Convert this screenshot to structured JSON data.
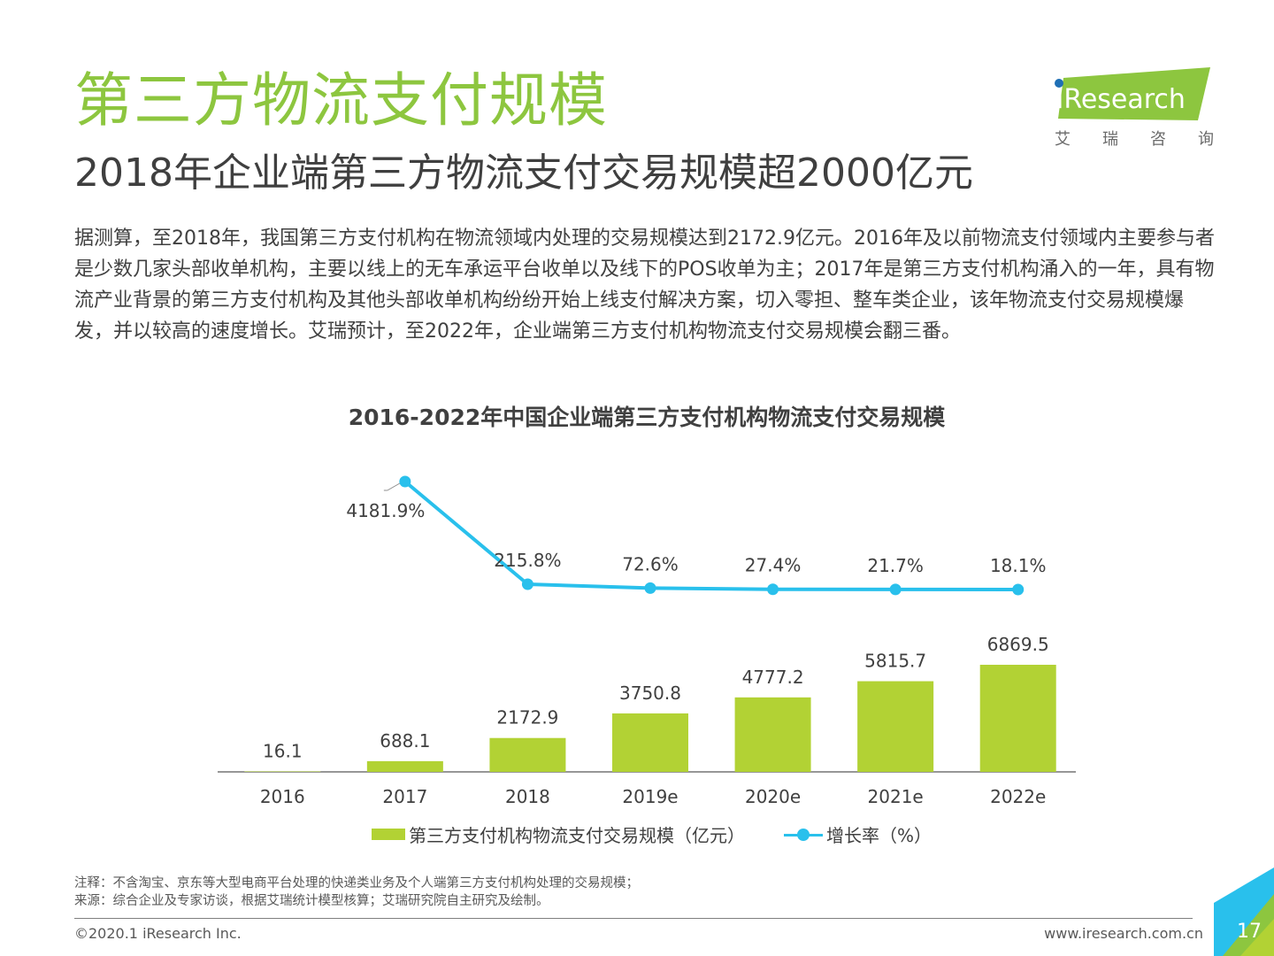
{
  "header": {
    "title": "第三方物流支付规模",
    "subtitle": "2018年企业端第三方物流支付交易规模超2000亿元"
  },
  "logo": {
    "brand": "iResearch",
    "chars": [
      "艾",
      "瑞",
      "咨",
      "询"
    ]
  },
  "body_text": "据测算，至2018年，我国第三方支付机构在物流领域内处理的交易规模达到2172.9亿元。2016年及以前物流支付领域内主要参与者是少数几家头部收单机构，主要以线上的无车承运平台收单以及线下的POS收单为主；2017年是第三方支付机构涌入的一年，具有物流产业背景的第三方支付机构及其他头部收单机构纷纷开始上线支付解决方案，切入零担、整车类企业，该年物流支付交易规模爆发，并以较高的速度增长。艾瑞预计，至2022年，企业端第三方支付机构物流支付交易规模会翻三番。",
  "chart_data": {
    "type": "bar",
    "title": "2016-2022年中国企业端第三方支付机构物流支付交易规模",
    "categories": [
      "2016",
      "2017",
      "2018",
      "2019e",
      "2020e",
      "2021e",
      "2022e"
    ],
    "series": [
      {
        "name": "第三方支付机构物流支付交易规模（亿元）",
        "type": "bar",
        "color": "#b2d234",
        "values": [
          16.1,
          688.1,
          2172.9,
          3750.8,
          4777.2,
          5815.7,
          6869.5
        ],
        "labels": [
          "16.1",
          "688.1",
          "2172.9",
          "3750.8",
          "4777.2",
          "5815.7",
          "6869.5"
        ]
      },
      {
        "name": "增长率（%）",
        "type": "line",
        "color": "#29c0ec",
        "values": [
          null,
          4181.9,
          215.8,
          72.6,
          27.4,
          21.7,
          18.1
        ],
        "labels": [
          "",
          "4181.9%",
          "215.8%",
          "72.6%",
          "27.4%",
          "21.7%",
          "18.1%"
        ]
      }
    ],
    "grid": false,
    "legend": "bottom"
  },
  "notes": [
    "注释：不含淘宝、京东等大型电商平台处理的快递类业务及个人端第三方支付机构处理的交易规模；",
    "来源：综合企业及专家访谈，根据艾瑞统计模型核算；艾瑞研究院自主研究及绘制。"
  ],
  "footer": {
    "copyright": "©2020.1 iResearch Inc.",
    "site": "www.iresearch.com.cn",
    "page": "17"
  }
}
